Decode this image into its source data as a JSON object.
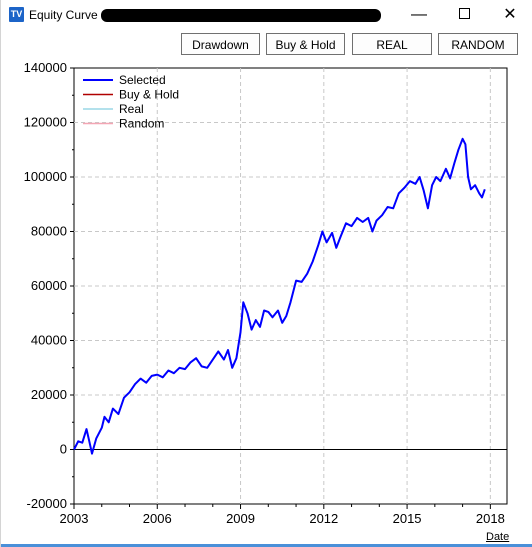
{
  "window": {
    "title": "Equity Curve -",
    "icon": "app-icon",
    "icon_text": "TV"
  },
  "toolbar": {
    "buttons": [
      {
        "label": "Drawdown"
      },
      {
        "label": "Buy & Hold"
      },
      {
        "label": "REAL"
      },
      {
        "label": "RANDOM"
      }
    ]
  },
  "footer": {
    "date_link": "Date"
  },
  "chart_data": {
    "type": "line",
    "xlim": [
      2003,
      2018.6
    ],
    "ylim": [
      -20000,
      140000
    ],
    "x_ticks": [
      2003,
      2006,
      2009,
      2012,
      2015,
      2018
    ],
    "y_ticks": [
      -20000,
      0,
      20000,
      40000,
      60000,
      80000,
      100000,
      120000,
      140000
    ],
    "grid": true,
    "legend": {
      "placement": "top-left",
      "entries": [
        {
          "name": "Selected",
          "color": "#0000ff"
        },
        {
          "name": "Buy & Hold",
          "color": "#b00000"
        },
        {
          "name": "Real",
          "color": "#9ad7e6"
        },
        {
          "name": "Random",
          "color": "#f4a6b4"
        }
      ]
    },
    "zero_line": 0,
    "series": [
      {
        "name": "Selected",
        "color": "#0000ff",
        "points": [
          [
            2003.0,
            0
          ],
          [
            2003.15,
            3000
          ],
          [
            2003.3,
            2500
          ],
          [
            2003.45,
            7500
          ],
          [
            2003.55,
            3000
          ],
          [
            2003.65,
            -1500
          ],
          [
            2003.8,
            4000
          ],
          [
            2004.0,
            8000
          ],
          [
            2004.1,
            12000
          ],
          [
            2004.25,
            10000
          ],
          [
            2004.4,
            15000
          ],
          [
            2004.6,
            13000
          ],
          [
            2004.8,
            19000
          ],
          [
            2005.0,
            21000
          ],
          [
            2005.2,
            24000
          ],
          [
            2005.4,
            26000
          ],
          [
            2005.6,
            24500
          ],
          [
            2005.8,
            27000
          ],
          [
            2006.0,
            27500
          ],
          [
            2006.2,
            26500
          ],
          [
            2006.4,
            29000
          ],
          [
            2006.6,
            28000
          ],
          [
            2006.8,
            30000
          ],
          [
            2007.0,
            29500
          ],
          [
            2007.2,
            32000
          ],
          [
            2007.4,
            33500
          ],
          [
            2007.6,
            30500
          ],
          [
            2007.8,
            30000
          ],
          [
            2008.0,
            33000
          ],
          [
            2008.2,
            36000
          ],
          [
            2008.4,
            33000
          ],
          [
            2008.55,
            36500
          ],
          [
            2008.7,
            30000
          ],
          [
            2008.85,
            33500
          ],
          [
            2009.0,
            43000
          ],
          [
            2009.1,
            54000
          ],
          [
            2009.25,
            50000
          ],
          [
            2009.4,
            44000
          ],
          [
            2009.55,
            47500
          ],
          [
            2009.7,
            45000
          ],
          [
            2009.85,
            51000
          ],
          [
            2010.0,
            50500
          ],
          [
            2010.15,
            48500
          ],
          [
            2010.35,
            51000
          ],
          [
            2010.5,
            46500
          ],
          [
            2010.65,
            49000
          ],
          [
            2010.8,
            54000
          ],
          [
            2011.0,
            62000
          ],
          [
            2011.2,
            61500
          ],
          [
            2011.4,
            64500
          ],
          [
            2011.6,
            69000
          ],
          [
            2011.8,
            75000
          ],
          [
            2011.95,
            80000
          ],
          [
            2012.1,
            76000
          ],
          [
            2012.3,
            79500
          ],
          [
            2012.45,
            74000
          ],
          [
            2012.6,
            78000
          ],
          [
            2012.8,
            83000
          ],
          [
            2013.0,
            82000
          ],
          [
            2013.2,
            85000
          ],
          [
            2013.4,
            83500
          ],
          [
            2013.6,
            85000
          ],
          [
            2013.75,
            80000
          ],
          [
            2013.9,
            84000
          ],
          [
            2014.1,
            86000
          ],
          [
            2014.3,
            89000
          ],
          [
            2014.5,
            88500
          ],
          [
            2014.7,
            94000
          ],
          [
            2014.9,
            96000
          ],
          [
            2015.1,
            98500
          ],
          [
            2015.3,
            97500
          ],
          [
            2015.45,
            100000
          ],
          [
            2015.6,
            95000
          ],
          [
            2015.75,
            88500
          ],
          [
            2015.9,
            97000
          ],
          [
            2016.05,
            100000
          ],
          [
            2016.2,
            98500
          ],
          [
            2016.4,
            103000
          ],
          [
            2016.55,
            99500
          ],
          [
            2016.7,
            105000
          ],
          [
            2016.85,
            110000
          ],
          [
            2017.0,
            114000
          ],
          [
            2017.1,
            112000
          ],
          [
            2017.2,
            100000
          ],
          [
            2017.3,
            95500
          ],
          [
            2017.45,
            97000
          ],
          [
            2017.6,
            94000
          ],
          [
            2017.7,
            92500
          ],
          [
            2017.8,
            95500
          ]
        ]
      }
    ]
  }
}
